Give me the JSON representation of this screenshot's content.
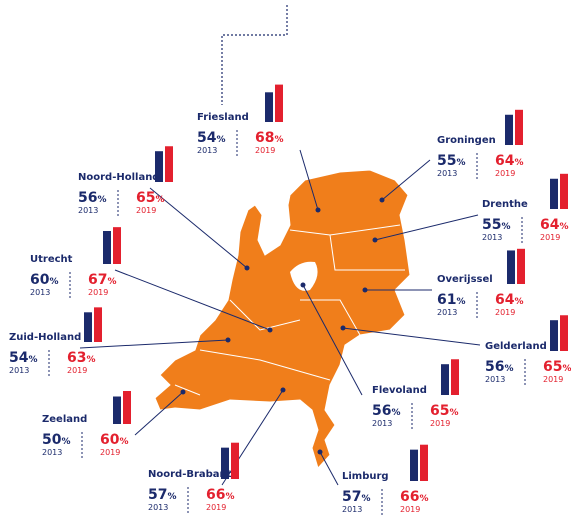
{
  "unit": "%",
  "years": [
    "2013",
    "2019"
  ],
  "provinces": [
    {
      "name": "Friesland",
      "values": [
        54,
        68
      ]
    },
    {
      "name": "Groningen",
      "values": [
        55,
        64
      ]
    },
    {
      "name": "Noord-Holland",
      "values": [
        56,
        65
      ]
    },
    {
      "name": "Drenthe",
      "values": [
        55,
        64
      ]
    },
    {
      "name": "Utrecht",
      "values": [
        60,
        67
      ]
    },
    {
      "name": "Overijssel",
      "values": [
        61,
        64
      ]
    },
    {
      "name": "Zuid-Holland",
      "values": [
        54,
        63
      ]
    },
    {
      "name": "Gelderland",
      "values": [
        56,
        65
      ]
    },
    {
      "name": "Flevoland",
      "values": [
        56,
        65
      ]
    },
    {
      "name": "Zeeland",
      "values": [
        50,
        60
      ]
    },
    {
      "name": "Noord-Brabant",
      "values": [
        57,
        66
      ]
    },
    {
      "name": "Limburg",
      "values": [
        57,
        66
      ]
    }
  ]
}
